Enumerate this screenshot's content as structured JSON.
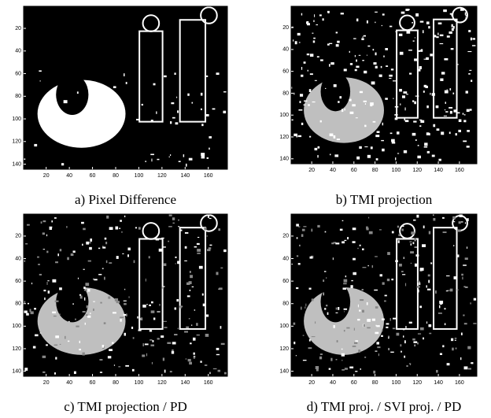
{
  "panels": [
    {
      "caption": "a) Pixel Difference",
      "xlim": [
        0.5,
        176.5
      ],
      "ylim": [
        0.5,
        144.5
      ],
      "xticks": [
        20,
        40,
        60,
        80,
        100,
        120,
        140,
        160
      ],
      "yticks": [
        20,
        40,
        60,
        80,
        100,
        120,
        140
      ]
    },
    {
      "caption": "b) TMI projection",
      "xlim": [
        0.5,
        176.5
      ],
      "ylim": [
        0.5,
        144.5
      ],
      "xticks": [
        20,
        40,
        60,
        80,
        100,
        120,
        140,
        160
      ],
      "yticks": [
        20,
        40,
        60,
        80,
        100,
        120,
        140
      ]
    },
    {
      "caption": "c) TMI projection / PD",
      "xlim": [
        0.5,
        176.5
      ],
      "ylim": [
        0.5,
        144.5
      ],
      "xticks": [
        20,
        40,
        60,
        80,
        100,
        120,
        140,
        160
      ],
      "yticks": [
        20,
        40,
        60,
        80,
        100,
        120,
        140
      ]
    },
    {
      "caption": "d) TMI proj. / SVI proj. / PD",
      "xlim": [
        0.5,
        176.5
      ],
      "ylim": [
        0.5,
        144.5
      ],
      "xticks": [
        20,
        40,
        60,
        80,
        100,
        120,
        140,
        160
      ],
      "yticks": [
        20,
        40,
        60,
        80,
        100,
        120,
        140
      ]
    }
  ]
}
